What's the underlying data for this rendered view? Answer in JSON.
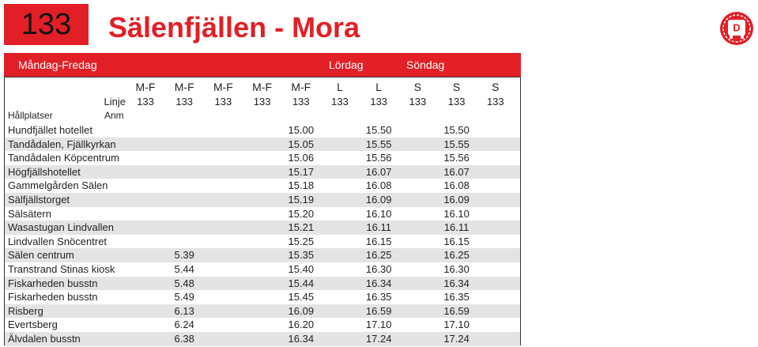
{
  "header": {
    "route": "133",
    "title": "Sälenfjällen - Mora",
    "logo_letter": "D"
  },
  "day_bar": [
    "Måndag-Fredag",
    "Lördag",
    "Söndag"
  ],
  "table": {
    "days": [
      "M-F",
      "M-F",
      "M-F",
      "M-F",
      "M-F",
      "L",
      "L",
      "S",
      "S",
      "S"
    ],
    "linje_label": "Linje",
    "linje": [
      "133",
      "133",
      "133",
      "133",
      "133",
      "133",
      "133",
      "133",
      "133",
      "133"
    ],
    "stops_label": "Hållplatser",
    "anm_label": "Anm",
    "rows": [
      {
        "stop": "Hundfjället hotellet",
        "times": [
          null,
          null,
          null,
          null,
          "15.00",
          null,
          "15.50",
          null,
          "15.50",
          null
        ]
      },
      {
        "stop": "Tandådalen, Fjällkyrkan",
        "times": [
          null,
          null,
          null,
          null,
          "15.05",
          null,
          "15.55",
          null,
          "15.55",
          null
        ]
      },
      {
        "stop": "Tandådalen Köpcentrum",
        "times": [
          null,
          null,
          null,
          null,
          "15.06",
          null,
          "15.56",
          null,
          "15.56",
          null
        ]
      },
      {
        "stop": "Högfjällshotellet",
        "times": [
          null,
          null,
          null,
          null,
          "15.17",
          null,
          "16.07",
          null,
          "16.07",
          null
        ]
      },
      {
        "stop": "Gammelgården Sälen",
        "times": [
          null,
          null,
          null,
          null,
          "15.18",
          null,
          "16.08",
          null,
          "16.08",
          null
        ]
      },
      {
        "stop": "Sälfjällstorget",
        "times": [
          null,
          null,
          null,
          null,
          "15.19",
          null,
          "16.09",
          null,
          "16.09",
          null
        ]
      },
      {
        "stop": "Sälsätern",
        "times": [
          null,
          null,
          null,
          null,
          "15.20",
          null,
          "16.10",
          null,
          "16.10",
          null
        ]
      },
      {
        "stop": "Wasastugan Lindvallen",
        "times": [
          null,
          null,
          null,
          null,
          "15.21",
          null,
          "16.11",
          null,
          "16.11",
          null
        ]
      },
      {
        "stop": "Lindvallen Snöcentret",
        "times": [
          null,
          null,
          null,
          null,
          "15.25",
          null,
          "16.15",
          null,
          "16.15",
          null
        ]
      },
      {
        "stop": "Sälen centrum",
        "times": [
          null,
          "5.39",
          null,
          null,
          "15.35",
          null,
          "16.25",
          null,
          "16.25",
          null
        ]
      },
      {
        "stop": "Transtrand Stinas kiosk",
        "times": [
          null,
          "5.44",
          null,
          null,
          "15.40",
          null,
          "16.30",
          null,
          "16.30",
          null
        ]
      },
      {
        "stop": "Fiskarheden busstn",
        "times": [
          null,
          "5.48",
          null,
          null,
          "15.44",
          null,
          "16.34",
          null,
          "16.34",
          null
        ]
      },
      {
        "stop": "Fiskarheden busstn",
        "times": [
          null,
          "5.49",
          null,
          null,
          "15.45",
          null,
          "16.35",
          null,
          "16.35",
          null
        ]
      },
      {
        "stop": "Risberg",
        "times": [
          null,
          "6.13",
          null,
          null,
          "16.09",
          null,
          "16.59",
          null,
          "16.59",
          null
        ]
      },
      {
        "stop": "Evertsberg",
        "times": [
          null,
          "6.24",
          null,
          null,
          "16.20",
          null,
          "17.10",
          null,
          "17.10",
          null
        ]
      },
      {
        "stop": "Älvdalen busstn",
        "times": [
          null,
          "6.38",
          null,
          null,
          "16.34",
          null,
          "17.24",
          null,
          "17.24",
          null
        ]
      }
    ]
  }
}
